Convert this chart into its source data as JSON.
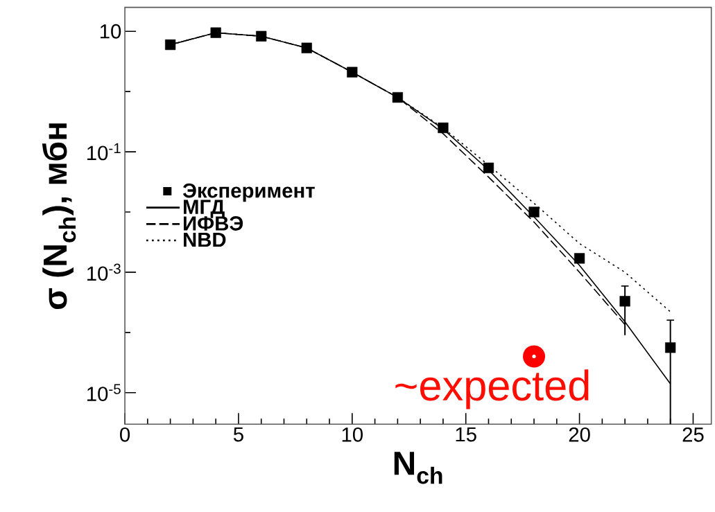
{
  "chart_data": {
    "type": "line",
    "xlabel": "N$_{ch}$",
    "ylabel": "σ (N$_{ch}$), мбн",
    "x": [
      2,
      4,
      6,
      8,
      10,
      12,
      14,
      16,
      18,
      20,
      22,
      24
    ],
    "series": [
      {
        "name": "Эксперимент",
        "type": "scatter",
        "marker": "square",
        "color": "#000000",
        "values": [
          6.0,
          9.5,
          8.3,
          5.3,
          2.1,
          0.8,
          0.25,
          0.054,
          0.01,
          0.0017,
          0.00033,
          5.6e-05
        ],
        "errors": [
          null,
          null,
          null,
          null,
          null,
          null,
          null,
          null,
          null,
          null,
          [
            9e-05,
            0.00059
          ],
          [
            3e-06,
            0.00016
          ]
        ]
      },
      {
        "name": "МГД",
        "line_style": "solid",
        "color": "#000000",
        "values": [
          6.0,
          9.5,
          8.3,
          5.3,
          2.1,
          0.8,
          0.24,
          0.05,
          0.0083,
          0.0013,
          0.00015,
          1.4e-05
        ]
      },
      {
        "name": "ИФВЭ",
        "line_style": "dashed",
        "color": "#000000",
        "x": [
          2,
          4,
          6,
          8,
          10,
          12,
          14,
          16,
          18,
          20,
          22
        ],
        "values": [
          6.0,
          9.5,
          8.3,
          5.3,
          2.1,
          0.8,
          0.2,
          0.038,
          0.0068,
          0.001,
          0.000135
        ]
      },
      {
        "name": "NBD",
        "line_style": "dotted",
        "color": "#000000",
        "values": [
          6.0,
          9.5,
          8.3,
          5.3,
          2.1,
          0.8,
          0.25,
          0.06,
          0.014,
          0.003,
          0.001,
          0.00022
        ]
      }
    ],
    "log": "y",
    "xlim": [
      0,
      25.8
    ],
    "ylim": [
      3e-06,
      25
    ],
    "xticks": [
      0,
      5,
      10,
      15,
      20,
      25
    ],
    "yticks": [
      {
        "value": 10,
        "label": "10"
      },
      {
        "value": 1,
        "label": null
      },
      {
        "value": 0.1,
        "label": "10$^{-1}$"
      },
      {
        "value": 0.01,
        "label": null
      },
      {
        "value": 0.001,
        "label": "10$^{-3}$"
      },
      {
        "value": 0.0001,
        "label": null
      },
      {
        "value": 1e-05,
        "label": "10$^{-5}$"
      }
    ],
    "legend": "left",
    "grid": false,
    "annotations": [
      {
        "text": "~expected",
        "x": 18,
        "y": 4e-05
      }
    ]
  }
}
